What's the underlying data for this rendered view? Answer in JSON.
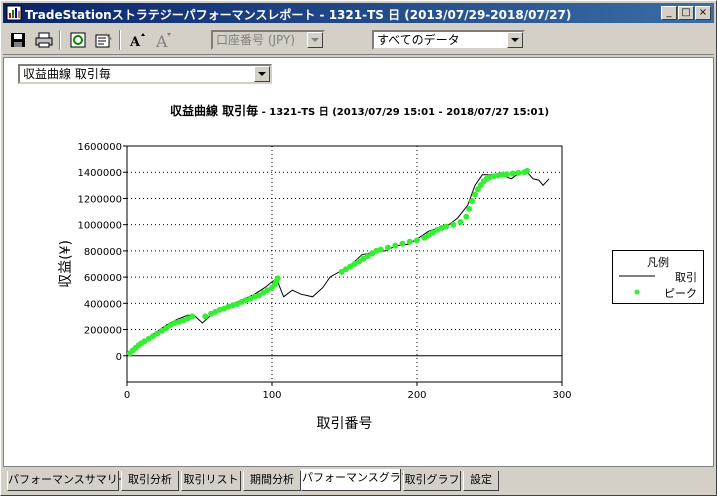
{
  "window": {
    "title": "TradeStationストラテジーパフォーマンスレポート - 1321-TS 日 (2013/07/29-2018/07/27)",
    "minimize_glyph": "_",
    "maximize_glyph": "□",
    "close_glyph": "×"
  },
  "toolbar": {
    "account_combo": "口座番号 (JPY)",
    "data_combo": "すべてのデータ"
  },
  "graph_selector": {
    "value": "収益曲線 取引毎"
  },
  "chart_data": {
    "type": "line",
    "title": "収益曲線 取引毎",
    "subtitle": "- 1321-TS 日 (2013/07/29 15:01 - 2018/07/27 15:01)",
    "xlabel": "取引番号",
    "ylabel": "収益(¥)",
    "xlim": [
      0,
      300
    ],
    "ylim": [
      -200000,
      1600000
    ],
    "x_ticks": [
      "0",
      "100",
      "200",
      "300"
    ],
    "y_ticks": [
      "0",
      "200000",
      "400000",
      "600000",
      "800000",
      "1000000",
      "1200000",
      "1400000",
      "1600000"
    ],
    "grid": "dotted",
    "legend_position": "right",
    "series": [
      {
        "name": "取引",
        "color": "#000000",
        "x": [
          0,
          5,
          12,
          20,
          28,
          35,
          42,
          47,
          52,
          58,
          65,
          72,
          80,
          88,
          95,
          103,
          108,
          114,
          120,
          128,
          135,
          140,
          148,
          155,
          162,
          170,
          178,
          186,
          194,
          200,
          208,
          216,
          222,
          228,
          235,
          240,
          245,
          250,
          258,
          265,
          270,
          276,
          280,
          284,
          287,
          291
        ],
        "y": [
          0,
          70000,
          120000,
          180000,
          240000,
          280000,
          310000,
          300000,
          250000,
          310000,
          350000,
          390000,
          430000,
          470000,
          520000,
          590000,
          450000,
          500000,
          470000,
          450000,
          520000,
          600000,
          650000,
          700000,
          770000,
          790000,
          800000,
          840000,
          850000,
          890000,
          950000,
          980000,
          1000000,
          1050000,
          1150000,
          1300000,
          1380000,
          1380000,
          1380000,
          1350000,
          1390000,
          1400000,
          1350000,
          1340000,
          1300000,
          1350000
        ]
      },
      {
        "name": "ピーク",
        "color": "#33ee33",
        "x": [
          2,
          4,
          6,
          8,
          10,
          12,
          15,
          18,
          21,
          24,
          27,
          30,
          33,
          36,
          39,
          42,
          45,
          54,
          58,
          61,
          64,
          67,
          70,
          73,
          76,
          79,
          82,
          85,
          88,
          91,
          94,
          97,
          100,
          102,
          103,
          104,
          148,
          151,
          154,
          157,
          160,
          163,
          166,
          169,
          172,
          175,
          180,
          185,
          190,
          195,
          200,
          205,
          208,
          211,
          214,
          217,
          220,
          225,
          230,
          234,
          236,
          238,
          240,
          242,
          244,
          246,
          248,
          250,
          253,
          256,
          259,
          262,
          266,
          270,
          274,
          276
        ],
        "y": [
          20000,
          40000,
          60000,
          80000,
          95000,
          110000,
          130000,
          150000,
          170000,
          190000,
          210000,
          235000,
          250000,
          260000,
          270000,
          285000,
          300000,
          300000,
          320000,
          335000,
          350000,
          360000,
          375000,
          385000,
          395000,
          410000,
          425000,
          435000,
          450000,
          460000,
          480000,
          500000,
          520000,
          545000,
          570000,
          590000,
          640000,
          660000,
          680000,
          700000,
          720000,
          740000,
          760000,
          780000,
          800000,
          810000,
          825000,
          840000,
          855000,
          870000,
          880000,
          900000,
          920000,
          940000,
          960000,
          975000,
          985000,
          1000000,
          1020000,
          1060000,
          1120000,
          1180000,
          1230000,
          1270000,
          1300000,
          1330000,
          1350000,
          1360000,
          1370000,
          1375000,
          1380000,
          1385000,
          1390000,
          1395000,
          1400000,
          1410000
        ]
      }
    ]
  },
  "legend": {
    "title": "凡例",
    "items": [
      "取引",
      "ピーク"
    ]
  },
  "tabs": [
    "パフォーマンスサマリー",
    "取引分析",
    "取引リスト",
    "期間分析",
    "パフォーマンスグラフ",
    "取引グラフ",
    "設定"
  ],
  "active_tab": 4
}
